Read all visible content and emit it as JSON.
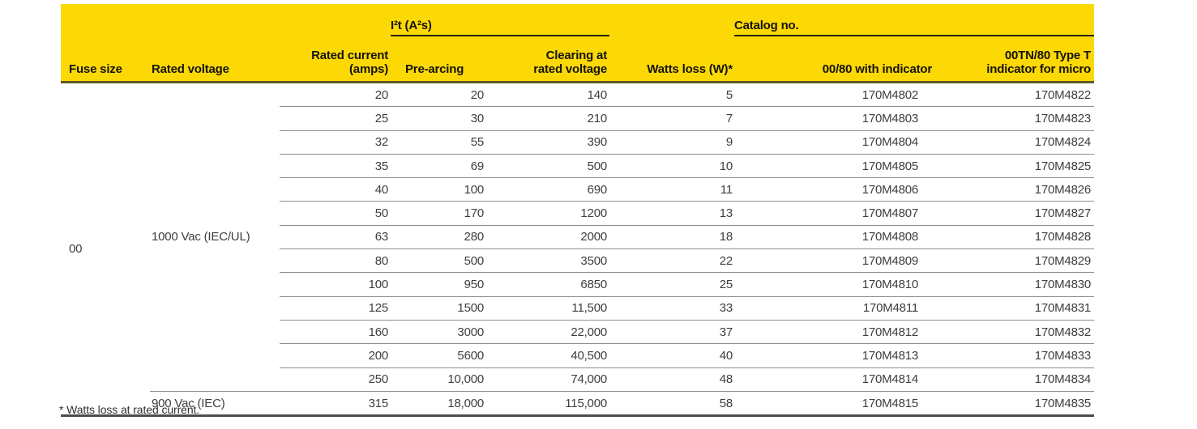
{
  "page": {
    "footnote": "* Watts loss at rated current.",
    "colors": {
      "header_yellow": "#fcd905",
      "header_rule_olive": "#5e5a20",
      "group_underline": "#23200d",
      "row_separator_gray": "#8d8d8d",
      "bottom_rule_gray": "#4c4c4c",
      "data_text": "#3e3e3e"
    }
  },
  "table": {
    "group_headers": [
      {
        "label": "I²t (A²s)"
      },
      {
        "label": "Catalog no."
      }
    ],
    "columns": [
      {
        "label": "Fuse size",
        "line1": "",
        "line2": "Fuse size"
      },
      {
        "label": "Rated voltage",
        "line1": "",
        "line2": "Rated voltage"
      },
      {
        "label": "Rated current (amps)",
        "line1": "Rated current",
        "line2": "(amps)"
      },
      {
        "label": "Pre-arcing",
        "line1": "",
        "line2": "Pre-arcing"
      },
      {
        "label": "Clearing at rated voltage",
        "line1": "Clearing at",
        "line2": "rated voltage"
      },
      {
        "label": "Watts loss (W)*",
        "line1": "",
        "line2": "Watts loss (W)*"
      },
      {
        "label": "00/80 with indicator",
        "line1": "",
        "line2": "00/80 with indicator"
      },
      {
        "label": "00TN/80 Type T indicator for micro",
        "line1": "00TN/80 Type T",
        "line2": "indicator for micro"
      }
    ],
    "fuse_size": "00",
    "voltage_groups": [
      {
        "rated_voltage": "1000 Vac (IEC/UL)",
        "rows": [
          [
            "20",
            "20",
            "140",
            "5",
            "170M4802",
            "170M4822"
          ],
          [
            "25",
            "30",
            "210",
            "7",
            "170M4803",
            "170M4823"
          ],
          [
            "32",
            "55",
            "390",
            "9",
            "170M4804",
            "170M4824"
          ],
          [
            "35",
            "69",
            "500",
            "10",
            "170M4805",
            "170M4825"
          ],
          [
            "40",
            "100",
            "690",
            "11",
            "170M4806",
            "170M4826"
          ],
          [
            "50",
            "170",
            "1200",
            "13",
            "170M4807",
            "170M4827"
          ],
          [
            "63",
            "280",
            "2000",
            "18",
            "170M4808",
            "170M4828"
          ],
          [
            "80",
            "500",
            "3500",
            "22",
            "170M4809",
            "170M4829"
          ],
          [
            "100",
            "950",
            "6850",
            "25",
            "170M4810",
            "170M4830"
          ],
          [
            "125",
            "1500",
            "11,500",
            "33",
            "170M4811",
            "170M4831"
          ],
          [
            "160",
            "3000",
            "22,000",
            "37",
            "170M4812",
            "170M4832"
          ],
          [
            "200",
            "5600",
            "40,500",
            "40",
            "170M4813",
            "170M4833"
          ],
          [
            "250",
            "10,000",
            "74,000",
            "48",
            "170M4814",
            "170M4834"
          ]
        ]
      },
      {
        "rated_voltage": "900 Vac (IEC)",
        "rows": [
          [
            "315",
            "18,000",
            "115,000",
            "58",
            "170M4815",
            "170M4835"
          ]
        ]
      }
    ]
  }
}
